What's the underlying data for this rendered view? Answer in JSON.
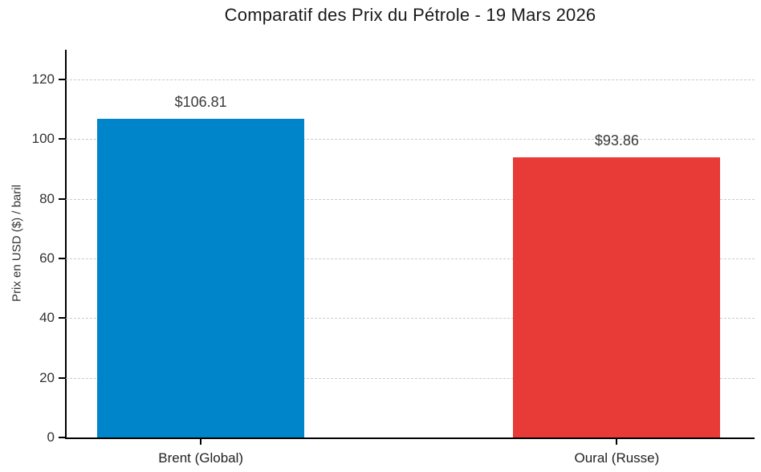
{
  "chart_data": {
    "type": "bar",
    "title": "Comparatif des Prix du Pétrole - 19 Mars 2026",
    "categories": [
      "Brent (Global)",
      "Oural (Russe)"
    ],
    "values": [
      106.81,
      93.86
    ],
    "value_labels": [
      "$106.81",
      "$93.86"
    ],
    "bar_colors": [
      "#0085CA",
      "#E83A36"
    ],
    "xlabel": "",
    "ylabel": "Prix en USD ($) / baril",
    "ylim": [
      0,
      130
    ],
    "yticks": [
      0,
      20,
      40,
      60,
      80,
      100,
      120
    ],
    "grid": "horizontal-dashed",
    "legend": "none"
  },
  "colors": {
    "background": "#ffffff",
    "grid": "#cbcbcb",
    "axis": "#000000",
    "tick_text": "#333333",
    "title_text": "#1a1a1a",
    "value_text": "#3a3a3a"
  }
}
